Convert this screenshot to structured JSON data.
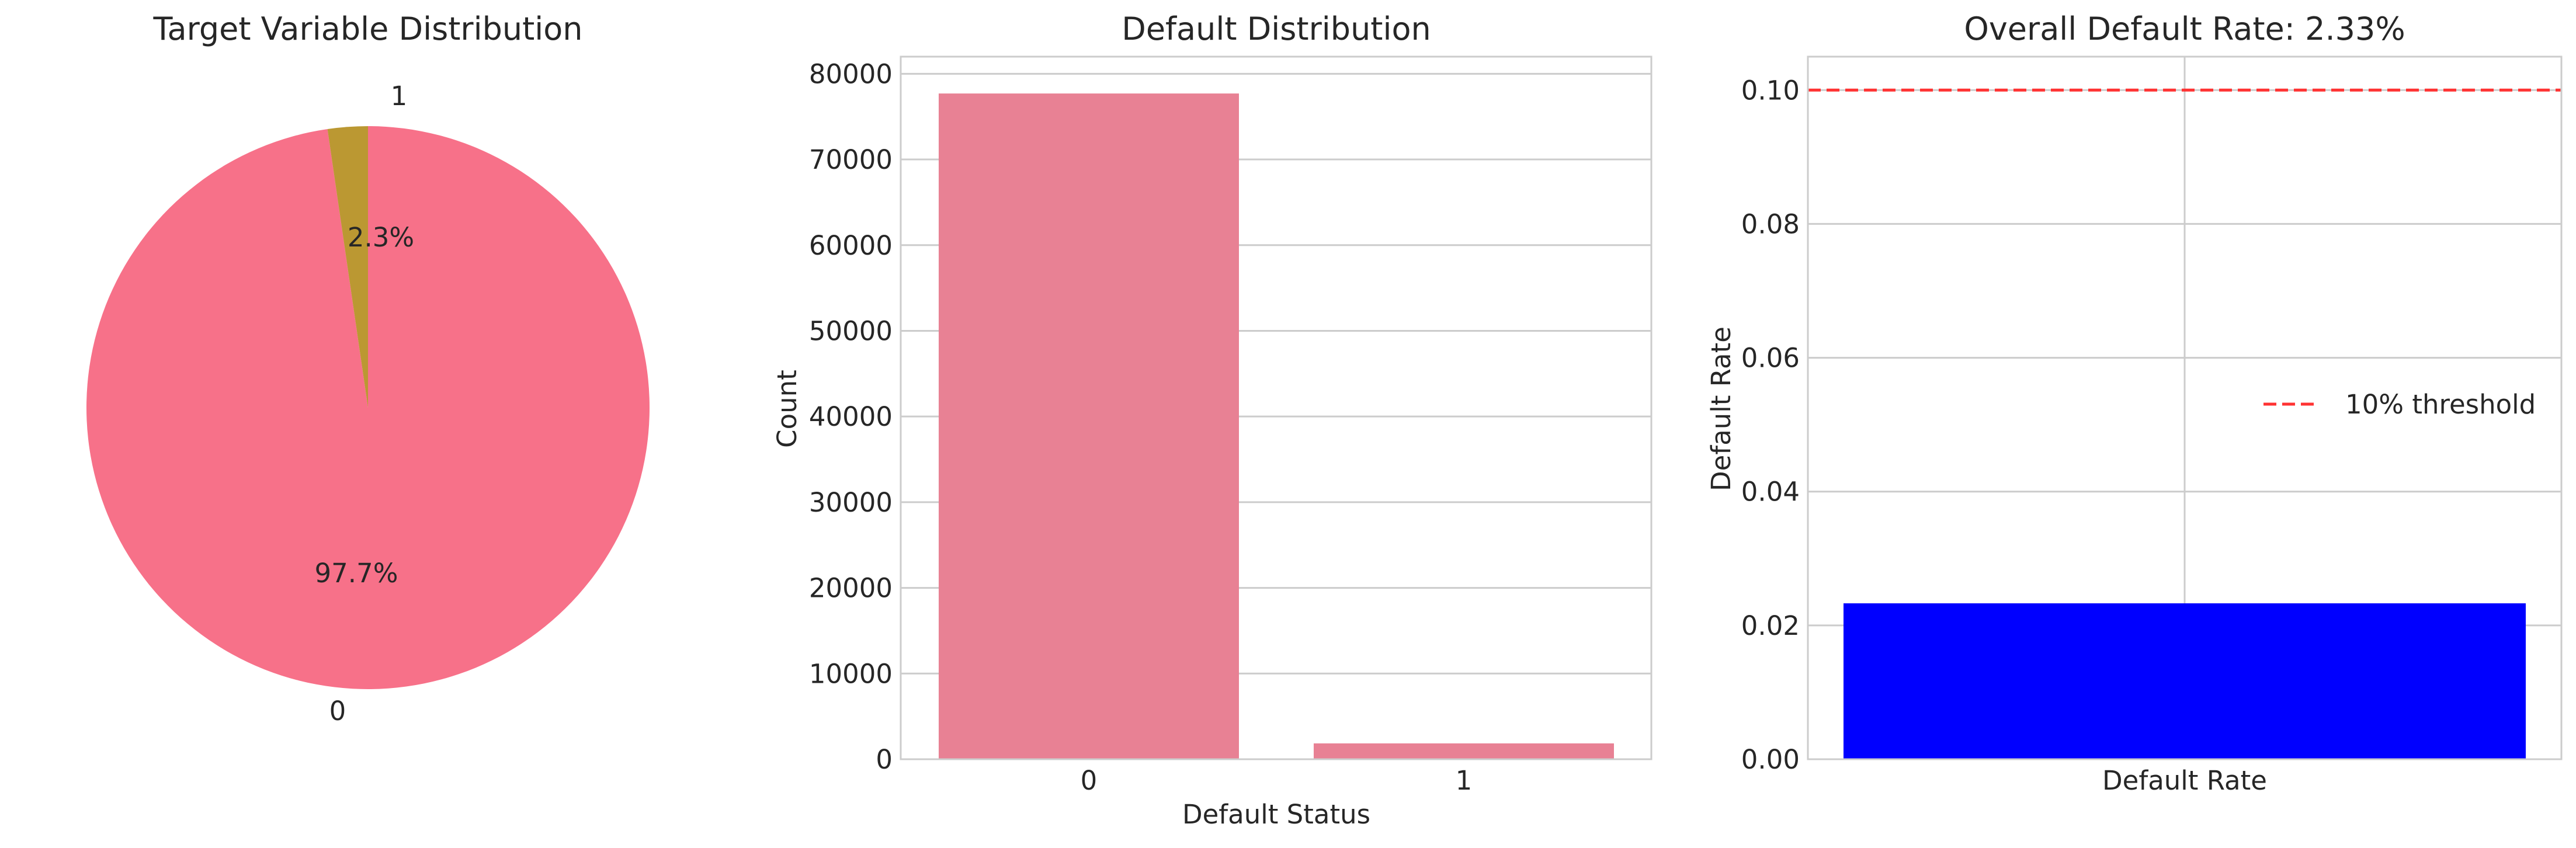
{
  "chart_data": [
    {
      "type": "pie",
      "title": "Target Variable Distribution",
      "labels": [
        "0",
        "1"
      ],
      "values": [
        97.7,
        2.3
      ],
      "autopct": [
        "97.7%",
        "2.3%"
      ],
      "colors": [
        "#f77189",
        "#bb9832"
      ]
    },
    {
      "type": "bar",
      "title": "Default Distribution",
      "xlabel": "Default Status",
      "ylabel": "Count",
      "categories": [
        "0",
        "1"
      ],
      "values": [
        77700,
        1850
      ],
      "ylim": [
        0,
        82000
      ],
      "yticks": [
        "0",
        "10000",
        "20000",
        "30000",
        "40000",
        "50000",
        "60000",
        "70000",
        "80000"
      ],
      "color": "#e88194",
      "grid": true
    },
    {
      "type": "bar",
      "title": "Overall Default Rate: 2.33%",
      "xlabel": "",
      "ylabel": "Default Rate",
      "categories": [
        "Default Rate"
      ],
      "values": [
        0.0233
      ],
      "ylim": [
        0,
        0.105
      ],
      "yticks": [
        "0.00",
        "0.02",
        "0.04",
        "0.06",
        "0.08",
        "0.10"
      ],
      "color": "#0000ff",
      "threshold": {
        "value": 0.1,
        "label": "10% threshold",
        "color": "#ff3333",
        "style": "dashed"
      },
      "legend": "center-right",
      "grid": true
    }
  ]
}
